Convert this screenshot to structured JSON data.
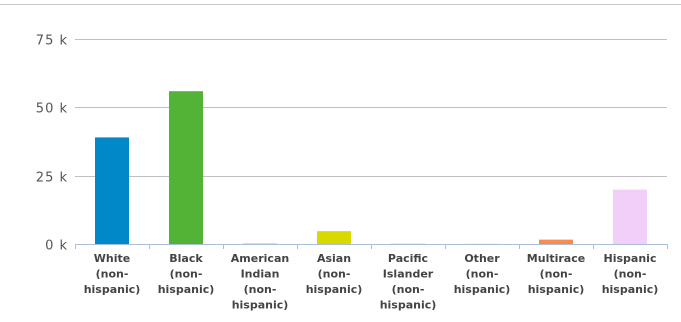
{
  "chart_data": {
    "type": "bar",
    "title": "",
    "xlabel": "",
    "ylabel": "",
    "categories": [
      [
        "White",
        "(non-",
        "hispanic)"
      ],
      [
        "Black",
        "(non-",
        "hispanic)"
      ],
      [
        "American",
        "Indian",
        "(non-",
        "hispanic)"
      ],
      [
        "Asian",
        "(non-",
        "hispanic)"
      ],
      [
        "Pacific",
        "Islander",
        "(non-",
        "hispanic)"
      ],
      [
        "Other",
        "(non-",
        "hispanic)"
      ],
      [
        "Multirace",
        "(non-",
        "hispanic)"
      ],
      [
        "Hispanic",
        "(non-",
        "hispanic)"
      ]
    ],
    "values": [
      39000,
      55900,
      150,
      4700,
      40,
      180,
      1600,
      19900
    ],
    "colors": [
      "#0088c8",
      "#52b336",
      "#85c9d8",
      "#d7d900",
      "#b9dcea",
      "#d7f0fa",
      "#f98b4e",
      "#f1cff9"
    ],
    "ylim": [
      0,
      75000
    ],
    "yticks": [
      0,
      25000,
      50000,
      75000
    ],
    "ytick_labels": [
      "0 k",
      "25 k",
      "50 k",
      "75 k"
    ],
    "grid": true,
    "legend": "none"
  }
}
